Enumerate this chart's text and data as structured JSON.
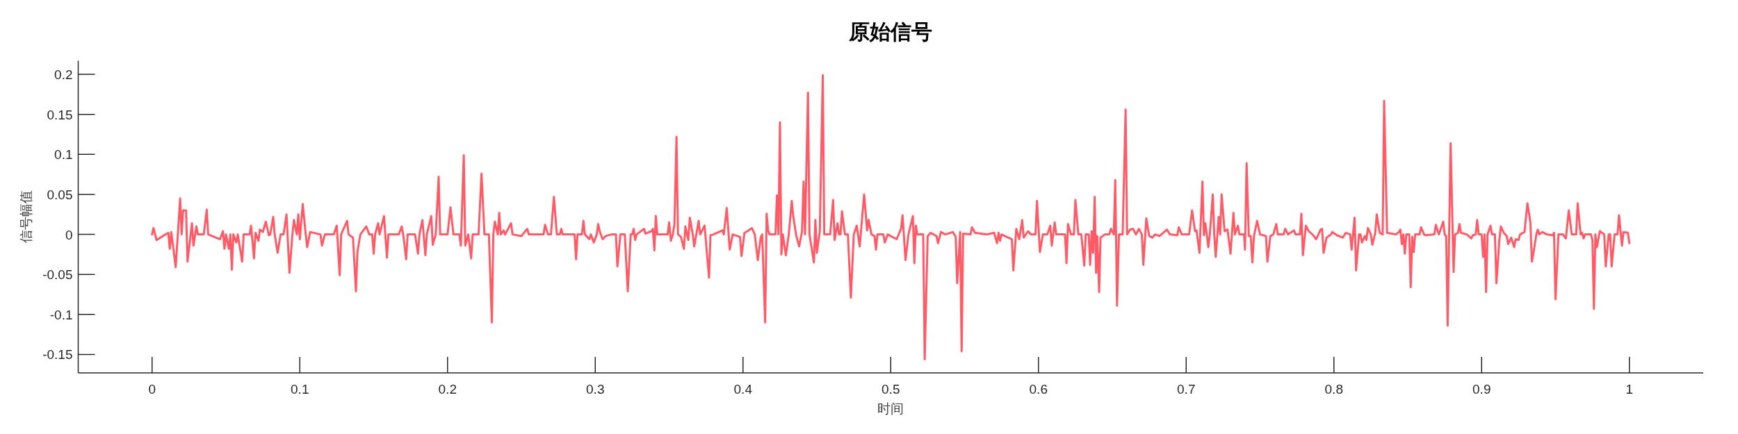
{
  "chart_data": {
    "type": "line",
    "title": "原始信号",
    "xlabel": "时间",
    "ylabel": "信号幅值",
    "xlim": [
      -0.05,
      1.05
    ],
    "ylim": [
      -0.173,
      0.217
    ],
    "xticks": [
      0,
      0.1,
      0.2,
      0.3,
      0.4,
      0.5,
      0.6,
      0.7,
      0.8,
      0.9,
      1
    ],
    "yticks": [
      -0.15,
      -0.1,
      -0.05,
      0,
      0.05,
      0.1,
      0.15,
      0.2
    ],
    "color": "#ff5a66",
    "line_style": "solid",
    "x": [
      0,
      0.001,
      0.003,
      0.009,
      0.011,
      0.012,
      0.013,
      0.016,
      0.019,
      0.02,
      0.021,
      0.023,
      0.024,
      0.027,
      0.028,
      0.03,
      0.031,
      0.035,
      0.037,
      0.038,
      0.046,
      0.048,
      0.049,
      0.05,
      0.052,
      0.053,
      0.054,
      0.055,
      0.057,
      0.058,
      0.061,
      0.062,
      0.066,
      0.067,
      0.069,
      0.07,
      0.072,
      0.073,
      0.075,
      0.077,
      0.079,
      0.08,
      0.082,
      0.083,
      0.085,
      0.087,
      0.089,
      0.091,
      0.093,
      0.095,
      0.096,
      0.098,
      0.099,
      0.1,
      0.102,
      0.104,
      0.105,
      0.107,
      0.114,
      0.115,
      0.117,
      0.123,
      0.125,
      0.127,
      0.128,
      0.132,
      0.133,
      0.136,
      0.138,
      0.139,
      0.141,
      0.145,
      0.147,
      0.149,
      0.15,
      0.151,
      0.153,
      0.154,
      0.157,
      0.159,
      0.16,
      0.167,
      0.169,
      0.17,
      0.172,
      0.173,
      0.178,
      0.18,
      0.181,
      0.183,
      0.185,
      0.186,
      0.189,
      0.19,
      0.192,
      0.194,
      0.195,
      0.2,
      0.202,
      0.204,
      0.208,
      0.209,
      0.211,
      0.212,
      0.214,
      0.216,
      0.217,
      0.221,
      0.223,
      0.225,
      0.228,
      0.23,
      0.231,
      0.232,
      0.234,
      0.235,
      0.236,
      0.238,
      0.239,
      0.243,
      0.244,
      0.25,
      0.254,
      0.255,
      0.265,
      0.266,
      0.268,
      0.27,
      0.272,
      0.274,
      0.276,
      0.277,
      0.278,
      0.286,
      0.287,
      0.288,
      0.291,
      0.292,
      0.293,
      0.296,
      0.297,
      0.299,
      0.301,
      0.302,
      0.303,
      0.305,
      0.307,
      0.311,
      0.314,
      0.315,
      0.317,
      0.32,
      0.322,
      0.324,
      0.325,
      0.326,
      0.327,
      0.328,
      0.333,
      0.334,
      0.338,
      0.339,
      0.34,
      0.341,
      0.342,
      0.349,
      0.35,
      0.3512,
      0.3525,
      0.3536,
      0.355,
      0.356,
      0.358,
      0.36,
      0.361,
      0.363,
      0.364,
      0.366,
      0.367,
      0.37,
      0.371,
      0.374,
      0.377,
      0.378,
      0.38,
      0.386,
      0.387,
      0.389,
      0.391,
      0.393,
      0.398,
      0.399,
      0.401,
      0.403,
      0.406,
      0.408,
      0.409,
      0.41,
      0.412,
      0.413,
      0.415,
      0.416,
      0.417,
      0.418,
      0.422,
      0.423,
      0.424,
      0.425,
      0.426,
      0.427,
      0.428,
      0.429,
      0.431,
      0.433,
      0.434,
      0.436,
      0.438,
      0.44,
      0.441,
      0.442,
      0.444,
      0.445,
      0.448,
      0.449,
      0.45,
      0.452,
      0.454,
      0.455,
      0.459,
      0.461,
      0.462,
      0.464,
      0.465,
      0.466,
      0.467,
      0.469,
      0.471,
      0.473,
      0.475,
      0.477,
      0.479,
      0.482,
      0.484,
      0.485,
      0.487,
      0.489,
      0.49,
      0.491,
      0.495,
      0.496,
      0.498,
      0.504,
      0.507,
      0.508,
      0.51,
      0.512,
      0.515,
      0.516,
      0.517,
      0.518,
      0.522,
      0.523,
      0.525,
      0.527,
      0.531,
      0.532,
      0.534,
      0.537,
      0.542,
      0.544,
      0.545,
      0.547,
      0.548,
      0.549,
      0.554,
      0.555,
      0.557,
      0.565,
      0.57,
      0.572,
      0.573,
      0.574,
      0.575,
      0.582,
      0.583,
      0.585,
      0.587,
      0.589,
      0.59,
      0.593,
      0.595,
      0.598,
      0.599,
      0.601,
      0.603,
      0.606,
      0.608,
      0.609,
      0.611,
      0.612,
      0.618,
      0.619,
      0.62,
      0.622,
      0.624,
      0.625,
      0.627,
      0.629,
      0.631,
      0.632,
      0.634,
      0.635,
      0.636,
      0.637,
      0.6381,
      0.639,
      0.6398,
      0.6411,
      0.642,
      0.645,
      0.648,
      0.649,
      0.651,
      0.652,
      0.6532,
      0.6545,
      0.657,
      0.659,
      0.66,
      0.662,
      0.664,
      0.666,
      0.668,
      0.67,
      0.671,
      0.673,
      0.675,
      0.677,
      0.679,
      0.682,
      0.687,
      0.689,
      0.694,
      0.695,
      0.697,
      0.702,
      0.704,
      0.706,
      0.707,
      0.709,
      0.711,
      0.712,
      0.713,
      0.715,
      0.716,
      0.718,
      0.719,
      0.72,
      0.722,
      0.723,
      0.724,
      0.726,
      0.728,
      0.73,
      0.732,
      0.733,
      0.735,
      0.736,
      0.7392,
      0.7398,
      0.7409,
      0.7424,
      0.7437,
      0.7448,
      0.7459,
      0.748,
      0.75,
      0.754,
      0.755,
      0.757,
      0.759,
      0.761,
      0.762,
      0.766,
      0.767,
      0.769,
      0.773,
      0.774,
      0.777,
      0.778,
      0.779,
      0.781,
      0.783,
      0.786,
      0.788,
      0.791,
      0.792,
      0.793,
      0.795,
      0.798,
      0.799,
      0.802,
      0.806,
      0.808,
      0.811,
      0.812,
      0.814,
      0.815,
      0.817,
      0.818,
      0.819,
      0.821,
      0.822,
      0.823,
      0.825,
      0.826,
      0.828,
      0.829,
      0.831,
      0.833,
      0.834,
      0.836,
      0.842,
      0.844,
      0.845,
      0.846,
      0.847,
      0.848,
      0.849,
      0.851,
      0.852,
      0.853,
      0.854,
      0.855,
      0.858,
      0.859,
      0.861,
      0.862,
      0.868,
      0.869,
      0.871,
      0.872,
      0.874,
      0.875,
      0.876,
      0.877,
      0.879,
      0.881,
      0.882,
      0.884,
      0.885,
      0.886,
      0.89,
      0.893,
      0.894,
      0.896,
      0.897,
      0.898,
      0.9,
      0.901,
      0.902,
      0.903,
      0.904,
      0.906,
      0.907,
      0.909,
      0.91,
      0.912,
      0.913,
      0.915,
      0.917,
      0.918,
      0.92,
      0.922,
      0.923,
      0.925,
      0.926,
      0.929,
      0.931,
      0.933,
      0.934,
      0.935,
      0.937,
      0.938,
      0.939,
      0.941,
      0.944,
      0.948,
      0.949,
      0.95,
      0.952,
      0.955,
      0.957,
      0.959,
      0.961,
      0.964,
      0.965,
      0.967,
      0.968,
      0.969,
      0.97,
      0.974,
      0.975,
      0.976,
      0.977,
      0.978,
      0.98,
      0.983,
      0.984,
      0.986,
      0.987,
      0.988,
      0.99,
      0.992,
      0.993,
      0.995,
      0.996,
      0.999,
      1
    ],
    "values": [
      0,
      0.008,
      -0.007,
      0,
      0.002,
      -0.018,
      0.003,
      -0.041,
      0.045,
      0,
      0.03,
      0.03,
      -0.034,
      0.014,
      -0.014,
      0.01,
      0,
      0,
      0.031,
      0,
      -0.006,
      0.004,
      -0.018,
      0,
      -0.018,
      0,
      -0.044,
      0,
      -0.01,
      0,
      -0.034,
      0,
      0,
      0.011,
      -0.03,
      0.002,
      -0.008,
      0.006,
      0.003,
      0.016,
      -0.001,
      0,
      0.022,
      0,
      -0.023,
      0,
      0,
      0.025,
      -0.048,
      0,
      0.018,
      0,
      0.025,
      -0.006,
      0.038,
      0,
      -0.016,
      0.003,
      0,
      -0.014,
      0,
      0,
      0.011,
      -0.051,
      0,
      0.017,
      0,
      -0.004,
      -0.071,
      -0.022,
      0,
      0.01,
      0,
      0,
      -0.024,
      0,
      0.014,
      0,
      0.023,
      -0.029,
      0,
      0,
      0.01,
      0,
      -0.031,
      0,
      0,
      -0.024,
      0,
      0.018,
      -0.026,
      0,
      0.023,
      -0.013,
      0,
      0.072,
      0,
      0,
      0.034,
      0,
      0,
      -0.014,
      0.099,
      -0.014,
      0,
      -0.03,
      0,
      0,
      0.076,
      0,
      0,
      -0.11,
      0,
      0.016,
      0,
      0.027,
      0,
      0.005,
      0,
      0.014,
      0,
      -0.002,
      0.007,
      0,
      0,
      0.012,
      0,
      0,
      0.047,
      0,
      0,
      0.007,
      0,
      0,
      -0.031,
      0,
      0,
      0.017,
      0,
      -0.006,
      0,
      -0.01,
      0,
      0.013,
      0.004,
      -0.006,
      -0.002,
      0,
      0,
      -0.04,
      0,
      0,
      -0.071,
      0,
      0,
      0.007,
      -0.007,
      0,
      0.007,
      0.001,
      0.004,
      0.007,
      -0.02,
      0.023,
      0,
      0,
      0.015,
      -0.008,
      0,
      0.013,
      0.122,
      0,
      -0.003,
      -0.018,
      0.01,
      -0.007,
      0.021,
      0,
      -0.015,
      0.017,
      0,
      0.011,
      -0.054,
      -0.001,
      0,
      0.005,
      0,
      0.033,
      -0.019,
      0,
      -0.003,
      -0.027,
      0.002,
      0.004,
      0.008,
      0,
      -0.016,
      -0.032,
      -0.004,
      0,
      -0.11,
      0.026,
      0.005,
      0,
      0,
      0.049,
      0,
      0.14,
      -0.025,
      0,
      -0.013,
      -0.026,
      0,
      0.042,
      0.023,
      -0.001,
      -0.015,
      0.004,
      0.066,
      0,
      0.177,
      0,
      -0.035,
      0.018,
      -0.023,
      0.004,
      0.199,
      0,
      0,
      0.043,
      -0.007,
      0.014,
      0,
      0,
      0.029,
      0,
      0,
      -0.079,
      0,
      0.011,
      -0.015,
      0.05,
      0.005,
      0.018,
      0,
      -0.002,
      -0.019,
      0,
      0,
      -0.01,
      0,
      -0.006,
      0.007,
      0.024,
      -0.032,
      0,
      0.023,
      -0.036,
      0.011,
      0,
      0,
      -0.156,
      -0.002,
      0.002,
      -0.002,
      -0.011,
      0.003,
      0,
      0.003,
      -0.003,
      -0.061,
      0.003,
      -0.146,
      0.001,
      0,
      0.009,
      0.002,
      0,
      0.002,
      -0.011,
      0.002,
      -0.008,
      0,
      -0.006,
      -0.045,
      0.007,
      -0.006,
      0.018,
      -0.004,
      0.004,
      0,
      0,
      0.042,
      -0.022,
      0,
      0,
      0.011,
      -0.014,
      0.015,
      0,
      0,
      -0.036,
      0.013,
      0,
      0,
      0.043,
      0,
      0,
      -0.039,
      0,
      0,
      -0.038,
      0.004,
      -0.023,
      0.047,
      -0.048,
      -0.002,
      -0.072,
      -0.004,
      0,
      0,
      0.007,
      0,
      0.068,
      -0.089,
      0,
      0,
      0.156,
      0,
      0.006,
      0.007,
      0,
      0.007,
      0,
      -0.038,
      0.02,
      -0.002,
      -0.004,
      0,
      -0.002,
      0.006,
      0,
      -0.001,
      0.009,
      0,
      0,
      0.03,
      0.004,
      0.005,
      -0.023,
      0.066,
      -0.001,
      0.014,
      -0.016,
      0,
      0.05,
      0,
      -0.028,
      0.022,
      0,
      0.05,
      0.004,
      0.006,
      -0.024,
      0.027,
      0,
      0.011,
      0,
      0,
      -0.019,
      0.089,
      -0.002,
      -0.002,
      -0.035,
      -0.002,
      0.017,
      0,
      -0.002,
      -0.034,
      -0.002,
      0,
      0.013,
      0,
      0,
      0.007,
      0,
      0.005,
      0,
      0,
      0.026,
      -0.026,
      0.011,
      0.004,
      -0.001,
      -0.006,
      0.006,
      0.007,
      -0.023,
      -0.004,
      0,
      0.003,
      -0.001,
      -0.004,
      0.002,
      0,
      -0.019,
      0.021,
      -0.045,
      0,
      0,
      -0.01,
      -0.002,
      -0.007,
      0.008,
      0,
      -0.013,
      0.002,
      0.025,
      0.002,
      0,
      0.167,
      0.002,
      0,
      0.003,
      0.006,
      -0.012,
      0,
      -0.024,
      0,
      0,
      -0.066,
      -0.003,
      -0.022,
      0,
      0,
      0.009,
      0,
      -0.001,
      0,
      0.012,
      0,
      0.005,
      0.016,
      0,
      -0.002,
      -0.114,
      0.114,
      -0.047,
      0,
      0.002,
      0.013,
      0.002,
      0,
      -0.005,
      -0.001,
      0,
      0.018,
      0,
      0,
      -0.028,
      0,
      -0.072,
      0,
      0.011,
      0,
      0,
      -0.061,
      -0.007,
      0.01,
      0.002,
      -0.002,
      -0.012,
      -0.004,
      -0.016,
      -0.006,
      -0.007,
      0,
      0.003,
      0.039,
      0.015,
      -0.034,
      -0.024,
      0,
      0.006,
      0,
      0.003,
      0,
      -0.001,
      0.002,
      -0.081,
      0,
      0,
      -0.005,
      0.03,
      0,
      0,
      0.039,
      0,
      0.002,
      -0.005,
      0,
      0,
      -0.007,
      -0.093,
      0,
      -0.016,
      0.004,
      0,
      -0.04,
      0,
      0,
      -0.04,
      0,
      0,
      0.024,
      -0.014,
      0.003,
      0.002,
      -0.011
    ]
  }
}
